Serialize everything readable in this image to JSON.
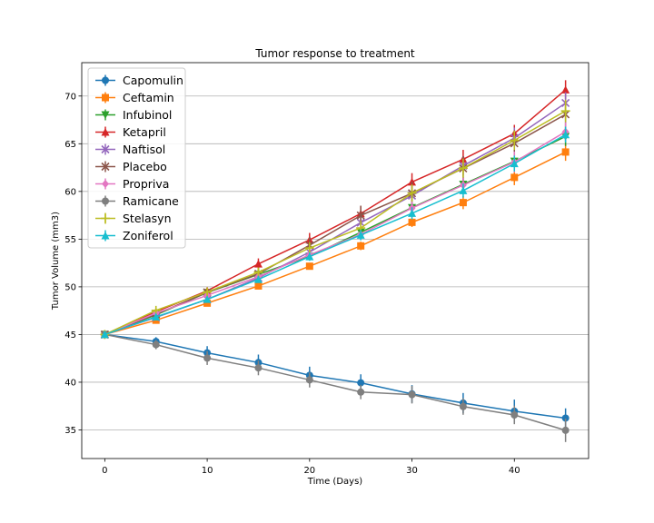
{
  "chart_data": {
    "type": "line",
    "title": "Tumor response to treatment",
    "xlabel": "Time (Days)",
    "ylabel": "Tumor Volume (mm3)",
    "xlim": [
      -2.25,
      47.25
    ],
    "ylim": [
      32.0,
      73.5
    ],
    "xticks": [
      0,
      10,
      20,
      30,
      40
    ],
    "yticks": [
      35,
      40,
      45,
      50,
      55,
      60,
      65,
      70
    ],
    "grid": "horizontal",
    "legend_position": "top-left",
    "x": [
      0,
      5,
      10,
      15,
      20,
      25,
      30,
      35,
      40,
      45
    ],
    "series": [
      {
        "name": "Capomulin",
        "color": "#1f77b4",
        "marker": "circle",
        "values": [
          45.0,
          44.27,
          43.08,
          42.06,
          40.72,
          39.94,
          38.77,
          37.82,
          36.96,
          36.24
        ],
        "errors": [
          0,
          0.45,
          0.7,
          0.84,
          0.91,
          0.89,
          0.93,
          1.05,
          1.22,
          1.02
        ]
      },
      {
        "name": "Ceftamin",
        "color": "#ff7f0e",
        "marker": "square",
        "values": [
          45.0,
          46.5,
          48.29,
          50.09,
          52.16,
          54.29,
          56.76,
          58.83,
          61.47,
          64.13
        ],
        "errors": [
          0,
          0.16,
          0.24,
          0.33,
          0.36,
          0.44,
          0.49,
          0.69,
          0.81,
          0.92
        ]
      },
      {
        "name": "Infubinol",
        "color": "#2ca02c",
        "marker": "triangle-down",
        "values": [
          45.0,
          47.06,
          49.4,
          51.3,
          53.2,
          55.72,
          58.3,
          60.74,
          63.16,
          65.76
        ],
        "errors": [
          0,
          0.24,
          0.28,
          0.36,
          0.44,
          0.54,
          0.65,
          0.77,
          0.83,
          0.99
        ]
      },
      {
        "name": "Ketapril",
        "color": "#d62728",
        "marker": "triangle-up",
        "values": [
          45.0,
          47.39,
          49.58,
          52.4,
          54.92,
          57.68,
          60.99,
          63.37,
          66.07,
          70.66
        ],
        "errors": [
          0,
          0.26,
          0.36,
          0.58,
          0.73,
          0.76,
          0.93,
          0.99,
          0.91,
          1.0
        ]
      },
      {
        "name": "Naftisol",
        "color": "#9467bd",
        "marker": "x",
        "values": [
          45.0,
          46.8,
          48.69,
          50.93,
          53.64,
          56.73,
          59.56,
          62.69,
          65.6,
          69.27
        ],
        "errors": [
          0,
          0.2,
          0.32,
          0.44,
          0.6,
          0.81,
          0.98,
          1.01,
          1.1,
          1.13
        ]
      },
      {
        "name": "Placebo",
        "color": "#8c564b",
        "marker": "x",
        "values": [
          45.0,
          47.13,
          49.42,
          51.36,
          54.36,
          57.48,
          59.81,
          62.42,
          65.05,
          68.08
        ],
        "errors": [
          0,
          0.22,
          0.4,
          0.61,
          0.84,
          1.03,
          1.22,
          1.29,
          1.37,
          1.35
        ]
      },
      {
        "name": "Propriva",
        "color": "#e377c2",
        "marker": "diamond",
        "values": [
          45.0,
          47.25,
          49.1,
          51.07,
          53.35,
          55.5,
          58.25,
          60.66,
          63.08,
          66.26
        ],
        "errors": [
          0,
          0.23,
          0.38,
          0.47,
          0.55,
          0.6,
          0.79,
          0.88,
          1.09,
          0.99
        ]
      },
      {
        "name": "Ramicane",
        "color": "#7f7f7f",
        "marker": "circle",
        "values": [
          45.0,
          43.94,
          42.53,
          41.5,
          40.24,
          38.97,
          38.7,
          37.45,
          36.57,
          34.96
        ],
        "errors": [
          0,
          0.48,
          0.72,
          0.77,
          0.79,
          0.75,
          0.93,
          0.86,
          0.97,
          1.23
        ]
      },
      {
        "name": "Stelasyn",
        "color": "#bcbd22",
        "marker": "plus",
        "values": [
          45.0,
          47.53,
          49.46,
          51.53,
          54.07,
          56.17,
          59.83,
          62.44,
          65.36,
          68.44
        ],
        "errors": [
          0,
          0.24,
          0.43,
          0.49,
          0.62,
          0.74,
          0.9,
          1.0,
          1.0,
          1.18
        ]
      },
      {
        "name": "Zoniferol",
        "color": "#17becf",
        "marker": "triangle-up",
        "values": [
          45.0,
          46.85,
          48.69,
          50.78,
          53.17,
          55.43,
          57.71,
          60.09,
          62.92,
          65.96
        ],
        "errors": [
          0,
          0.19,
          0.26,
          0.36,
          0.44,
          0.55,
          0.63,
          0.74,
          0.83,
          0.83
        ]
      }
    ]
  }
}
